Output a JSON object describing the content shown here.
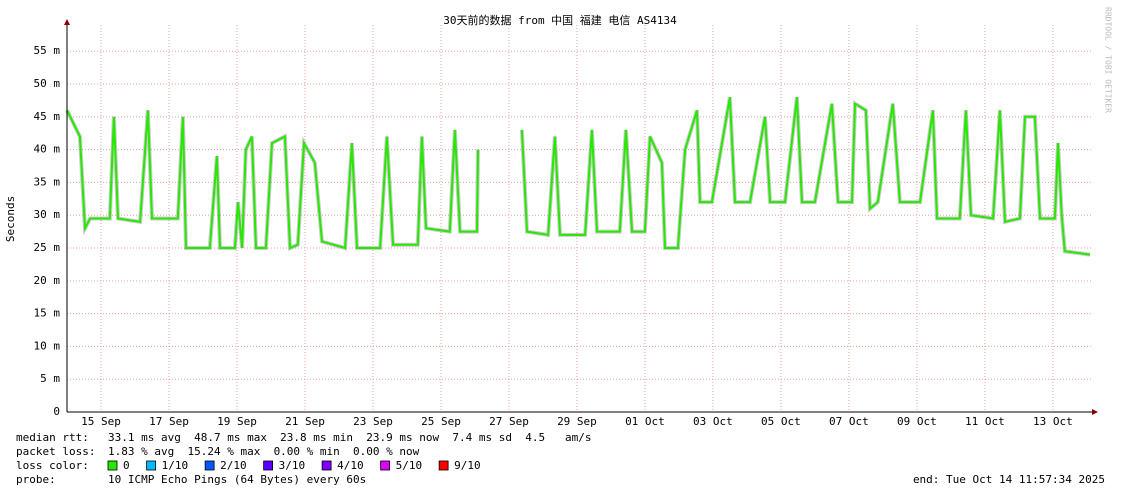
{
  "chart_data": {
    "type": "line",
    "title": "30天前的数据 from 中国 福建 电信 AS4134",
    "y_label": "Seconds",
    "watermark": "RRDTOOL / TOBI OETIKER",
    "color": "#26e800",
    "grid": true,
    "xlim": [
      0,
      30.15
    ],
    "xticks": [
      {
        "value": 1,
        "label": "15 Sep"
      },
      {
        "value": 3,
        "label": "17 Sep"
      },
      {
        "value": 5,
        "label": "19 Sep"
      },
      {
        "value": 7,
        "label": "21 Sep"
      },
      {
        "value": 9,
        "label": "23 Sep"
      },
      {
        "value": 11,
        "label": "25 Sep"
      },
      {
        "value": 13,
        "label": "27 Sep"
      },
      {
        "value": 15,
        "label": "29 Sep"
      },
      {
        "value": 17,
        "label": "01 Oct"
      },
      {
        "value": 19,
        "label": "03 Oct"
      },
      {
        "value": 21,
        "label": "05 Oct"
      },
      {
        "value": 23,
        "label": "07 Oct"
      },
      {
        "value": 25,
        "label": "09 Oct"
      },
      {
        "value": 27,
        "label": "11 Oct"
      },
      {
        "value": 29,
        "label": "13 Oct"
      }
    ],
    "ylim": [
      0,
      0.059
    ],
    "yticks": [
      0,
      {
        "value": 0.005,
        "label": "5 m"
      },
      {
        "value": 0.01,
        "label": "10 m"
      },
      {
        "value": 0.015,
        "label": "15 m"
      },
      {
        "value": 0.02,
        "label": "20 m"
      },
      {
        "value": 0.025,
        "label": "25 m"
      },
      {
        "value": 0.03,
        "label": "30 m"
      },
      {
        "value": 0.035,
        "label": "35 m"
      },
      {
        "value": 0.04,
        "label": "40 m"
      },
      {
        "value": 0.045,
        "label": "45 m"
      },
      {
        "value": 0.05,
        "label": "50 m"
      },
      {
        "value": 0.055,
        "label": "55 m"
      }
    ],
    "x": [
      0,
      0.38,
      0.53,
      0.68,
      1.26,
      1.38,
      1.5,
      2.15,
      2.38,
      2.5,
      3.26,
      3.41,
      3.5,
      4.2,
      4.41,
      4.5,
      4.94,
      5.03,
      5.15,
      5.26,
      5.44,
      5.56,
      5.85,
      6.03,
      6.41,
      6.56,
      6.79,
      6.97,
      7.29,
      7.5,
      8.18,
      8.38,
      8.53,
      9.21,
      9.41,
      9.59,
      10.32,
      10.44,
      10.56,
      11.26,
      11.41,
      11.56,
      12.06,
      12.09,
      12.7,
      13.38,
      13.53,
      14.15,
      14.35,
      14.5,
      15.24,
      15.44,
      15.59,
      16.26,
      16.44,
      16.62,
      17,
      17.15,
      17.5,
      17.59,
      17.97,
      18.18,
      18.53,
      18.62,
      18.97,
      19.5,
      19.65,
      20.09,
      20.53,
      20.68,
      21.12,
      21.47,
      21.62,
      22,
      22.5,
      22.68,
      23.09,
      23.18,
      23.5,
      23.62,
      23.85,
      24.29,
      24.5,
      25.09,
      25.47,
      25.59,
      26.26,
      26.44,
      26.59,
      27.24,
      27.44,
      27.59,
      28.03,
      28.18,
      28.47,
      28.62,
      29.06,
      29.15,
      29.26,
      29.35,
      30.09
    ],
    "values": [
      0.046,
      0.042,
      0.028,
      0.0295,
      0.0295,
      0.045,
      0.0295,
      0.029,
      0.046,
      0.0295,
      0.0295,
      0.045,
      0.025,
      0.025,
      0.039,
      0.025,
      0.025,
      0.032,
      0.025,
      0.04,
      0.042,
      0.025,
      0.025,
      0.041,
      0.042,
      0.025,
      0.0255,
      0.041,
      0.038,
      0.026,
      0.025,
      0.041,
      0.025,
      0.025,
      0.042,
      0.0255,
      0.0255,
      0.042,
      0.028,
      0.0275,
      0.043,
      0.0275,
      0.0275,
      0.04,
      null,
      0.043,
      0.0275,
      0.027,
      0.042,
      0.027,
      0.027,
      0.043,
      0.0275,
      0.0275,
      0.043,
      0.0275,
      0.0275,
      0.042,
      0.038,
      0.025,
      0.025,
      0.04,
      0.046,
      0.032,
      0.032,
      0.048,
      0.032,
      0.032,
      0.045,
      0.032,
      0.032,
      0.048,
      0.032,
      0.032,
      0.047,
      0.032,
      0.032,
      0.047,
      0.046,
      0.031,
      0.032,
      0.047,
      0.032,
      0.032,
      0.046,
      0.0295,
      0.0295,
      0.046,
      0.03,
      0.0295,
      0.046,
      0.029,
      0.0295,
      0.045,
      0.045,
      0.0295,
      0.0295,
      0.041,
      0.03,
      0.0245,
      0.024
    ]
  },
  "footer": {
    "median_label": "median rtt:",
    "median_text": "33.1 ms avg  48.7 ms max  23.8 ms min  23.9 ms now  7.4 ms sd  4.5   am/s",
    "loss_label": "packet loss:",
    "loss_text": "1.83 % avg  15.24 % max  0.00 % min  0.00 % now",
    "color_label": "loss color:",
    "colors": [
      {
        "label": "0",
        "color": "#26e800"
      },
      {
        "label": "1/10",
        "color": "#00b8ff"
      },
      {
        "label": "2/10",
        "color": "#0059ff"
      },
      {
        "label": "3/10",
        "color": "#5e00ff"
      },
      {
        "label": "4/10",
        "color": "#7e00ff"
      },
      {
        "label": "5/10",
        "color": "#dd00ff"
      },
      {
        "label": "9/10",
        "color": "#ff0000"
      }
    ],
    "probe_label": "probe:",
    "probe_text": "10 ICMP Echo Pings (64 Bytes) every 60s",
    "end_text": "end: Tue Oct 14 11:57:34 2025"
  }
}
